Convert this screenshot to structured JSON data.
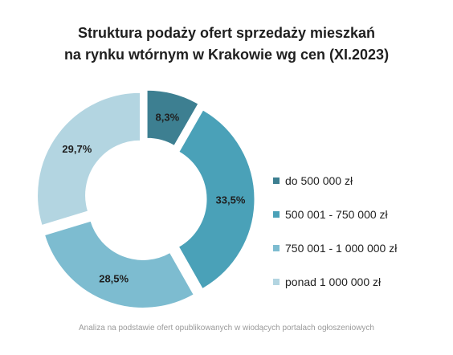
{
  "chart_data": {
    "type": "pie",
    "variant": "donut, exploded slices",
    "title_line1": "Struktura podaży ofert sprzedaży mieszkań",
    "title_line2": "na rynku wtórnym w Krakowie wg cen (XI.2023)",
    "legend_position": "right",
    "slices": [
      {
        "label": "do 500 000 zł",
        "value": 8.3,
        "value_label": "8,3%",
        "color": "#3d7f91"
      },
      {
        "label": "500 001 - 750 000 zł",
        "value": 33.5,
        "value_label": "33,5%",
        "color": "#4aa1b8"
      },
      {
        "label": "750 001 - 1 000 000 zł",
        "value": 28.5,
        "value_label": "28,5%",
        "color": "#7dbcd0"
      },
      {
        "label": "ponad 1 000 000 zł",
        "value": 29.7,
        "value_label": "29,7%",
        "color": "#b3d5e1"
      }
    ]
  },
  "footer": "Analiza na podstawie ofert opublikowanych w wiodących portalach ogłoszeniowych"
}
